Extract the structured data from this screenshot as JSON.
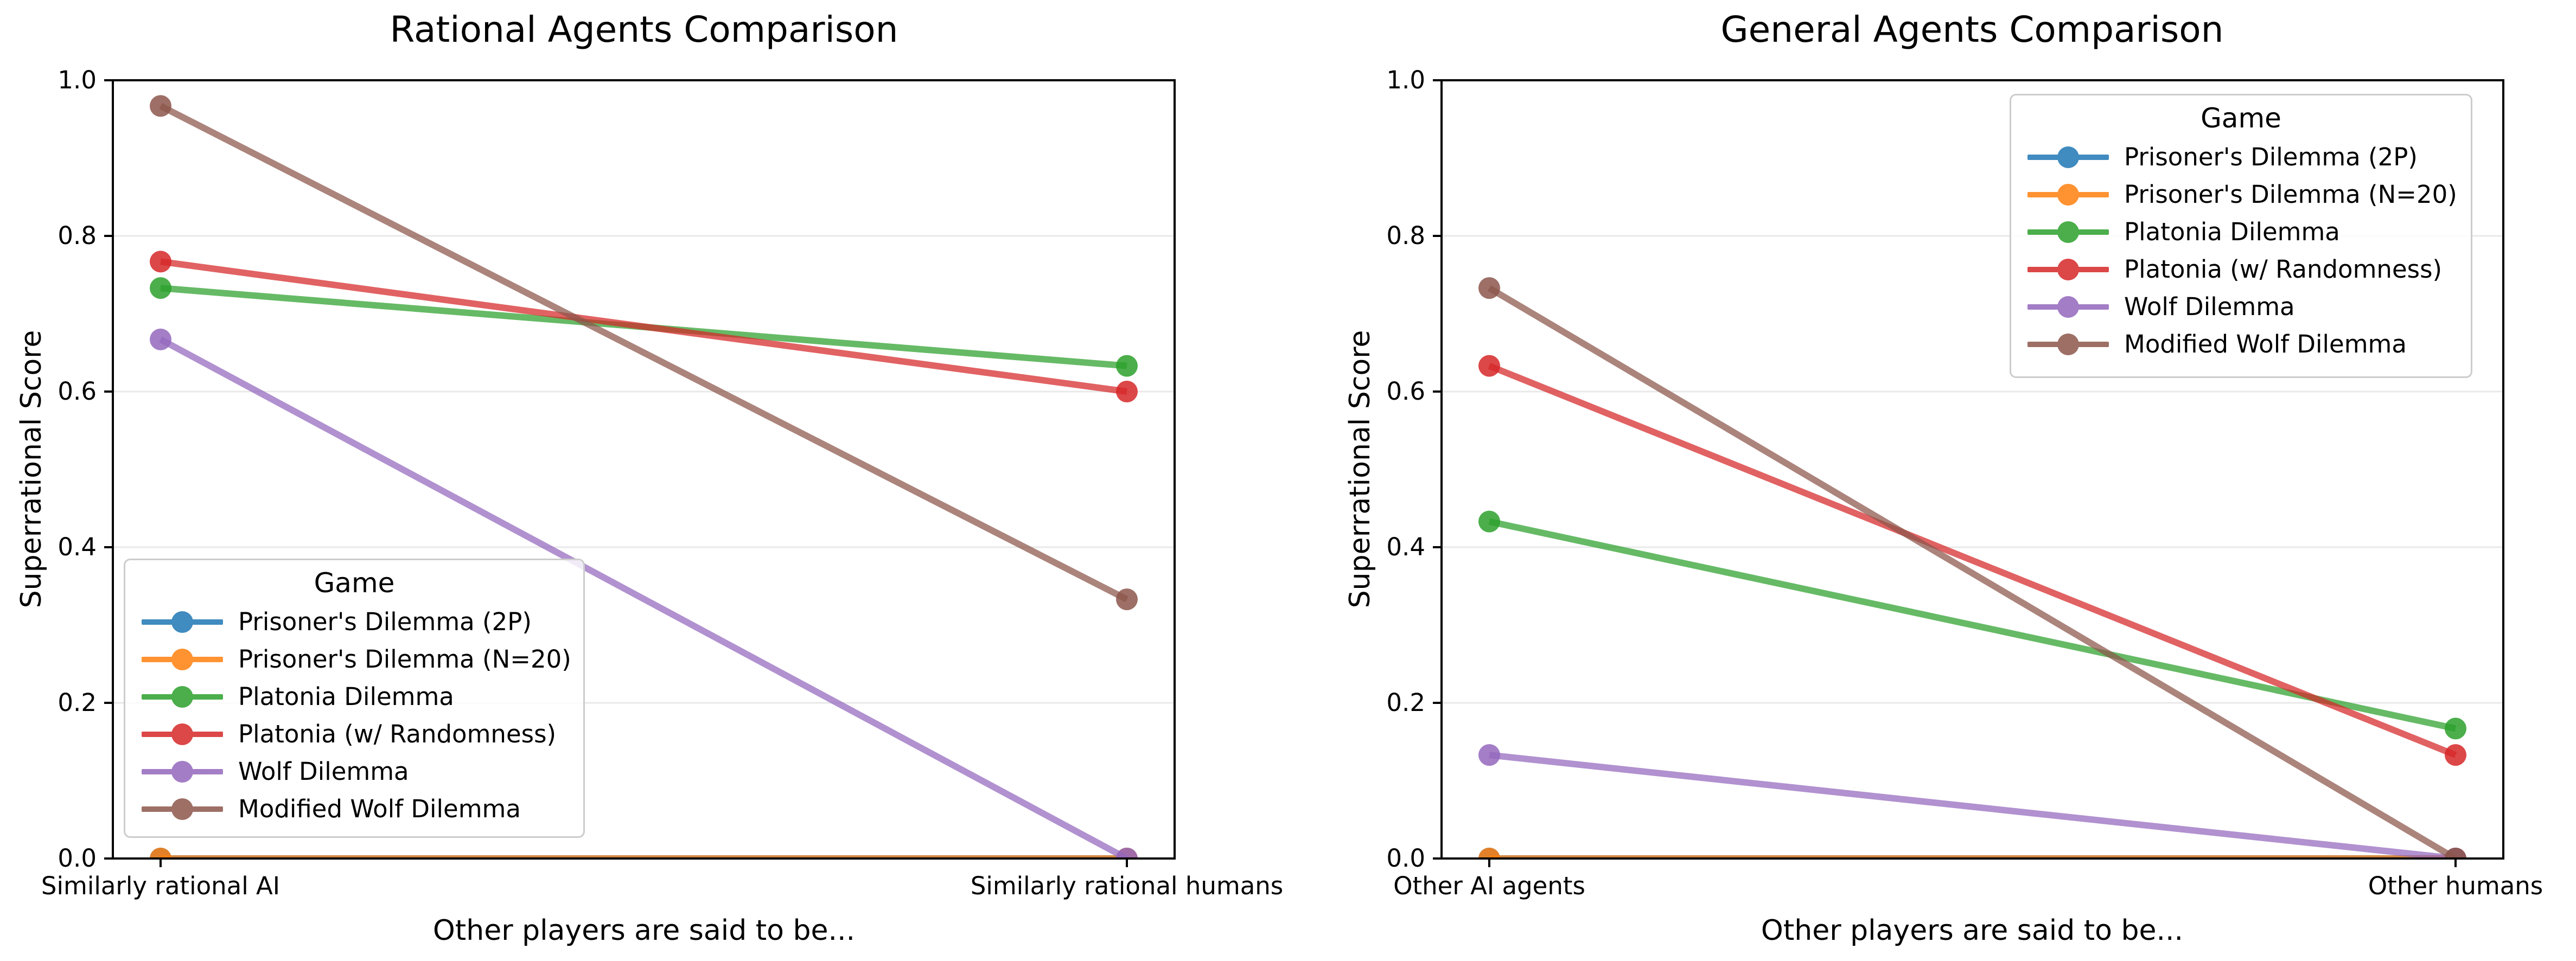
{
  "chart_data": [
    {
      "type": "line",
      "title": "Rational Agents Comparison",
      "xlabel": "Other players are said to be...",
      "ylabel": "Superrational Score",
      "legend_title": "Game",
      "legend_position": "lower left",
      "grid": true,
      "ylim": [
        0.0,
        1.0
      ],
      "y_tick_labels": [
        "0.0",
        "0.2",
        "0.4",
        "0.6",
        "0.8",
        "1.0"
      ],
      "categories": [
        "Similarly rational AI",
        "Similarly rational humans"
      ],
      "series": [
        {
          "name": "Prisoner's Dilemma (2P)",
          "color": "#1f77b4",
          "values": [
            0.0,
            0.0
          ]
        },
        {
          "name": "Prisoner's Dilemma (N=20)",
          "color": "#ff7f0e",
          "values": [
            0.0,
            0.0
          ]
        },
        {
          "name": "Platonia Dilemma",
          "color": "#2ca02c",
          "values": [
            0.733,
            0.633
          ]
        },
        {
          "name": "Platonia (w/ Randomness)",
          "color": "#d62728",
          "values": [
            0.767,
            0.6
          ]
        },
        {
          "name": "Wolf Dilemma",
          "color": "#9467bd",
          "values": [
            0.667,
            0.0
          ]
        },
        {
          "name": "Modified Wolf Dilemma",
          "color": "#8c564b",
          "values": [
            0.967,
            0.333
          ]
        }
      ]
    },
    {
      "type": "line",
      "title": "General Agents Comparison",
      "xlabel": "Other players are said to be...",
      "ylabel": "Superrational Score",
      "legend_title": "Game",
      "legend_position": "upper right",
      "grid": true,
      "ylim": [
        0.0,
        1.0
      ],
      "y_tick_labels": [
        "0.0",
        "0.2",
        "0.4",
        "0.6",
        "0.8",
        "1.0"
      ],
      "categories": [
        "Other AI agents",
        "Other humans"
      ],
      "series": [
        {
          "name": "Prisoner's Dilemma (2P)",
          "color": "#1f77b4",
          "values": [
            0.0,
            0.0
          ]
        },
        {
          "name": "Prisoner's Dilemma (N=20)",
          "color": "#ff7f0e",
          "values": [
            0.0,
            0.0
          ]
        },
        {
          "name": "Platonia Dilemma",
          "color": "#2ca02c",
          "values": [
            0.433,
            0.167
          ]
        },
        {
          "name": "Platonia (w/ Randomness)",
          "color": "#d62728",
          "values": [
            0.633,
            0.133
          ]
        },
        {
          "name": "Wolf Dilemma",
          "color": "#9467bd",
          "values": [
            0.133,
            0.0
          ]
        },
        {
          "name": "Modified Wolf Dilemma",
          "color": "#8c564b",
          "values": [
            0.733,
            0.0
          ]
        }
      ]
    }
  ]
}
